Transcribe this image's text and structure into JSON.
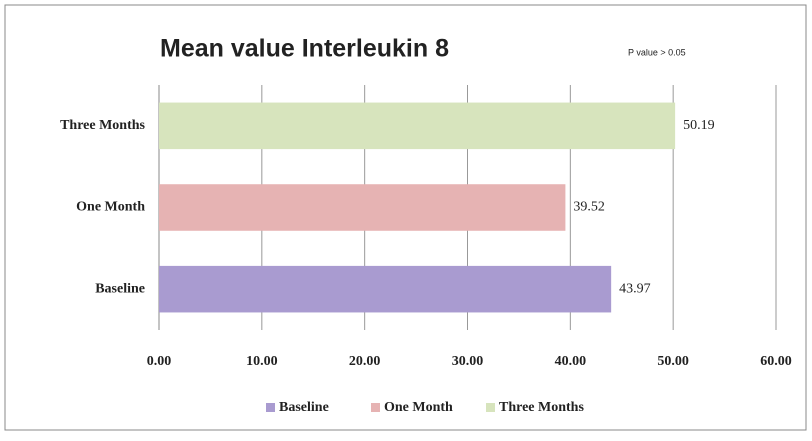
{
  "chart_data": {
    "type": "bar",
    "orientation": "horizontal",
    "title": "Mean value Interleukin 8",
    "annotation": "P value > 0.05",
    "categories": [
      "Baseline",
      "One Month",
      "Three Months"
    ],
    "values": [
      43.97,
      39.52,
      50.19
    ],
    "colors": [
      "#a99bd0",
      "#e6b3b3",
      "#d7e4bd"
    ],
    "xlim": [
      0,
      60
    ],
    "xticks": [
      {
        "value": 0,
        "label": "0.00"
      },
      {
        "value": 10,
        "label": "10.00"
      },
      {
        "value": 20,
        "label": "20.00"
      },
      {
        "value": 30,
        "label": "30.00"
      },
      {
        "value": 40,
        "label": "40.00"
      },
      {
        "value": 50,
        "label": "50.00"
      },
      {
        "value": 60,
        "label": "60.00"
      }
    ],
    "grid": true,
    "legend": "bottom"
  }
}
